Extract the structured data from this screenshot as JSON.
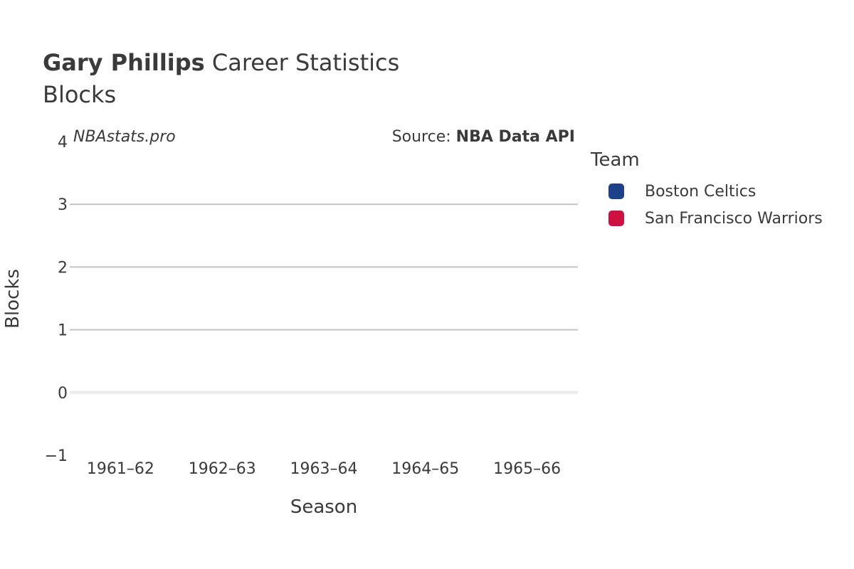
{
  "title": {
    "player": "Gary Phillips",
    "rest": "Career Statistics",
    "subtitle": "Blocks"
  },
  "watermark": "NBAstats.pro",
  "source": {
    "prefix": "Source: ",
    "name": "NBA Data API"
  },
  "legend": {
    "title": "Team",
    "items": [
      {
        "label": "Boston Celtics",
        "color": "#1d428a"
      },
      {
        "label": "San Francisco Warriors",
        "color": "#ce1141"
      }
    ]
  },
  "chart_data": {
    "type": "bar",
    "xlabel": "Season",
    "ylabel": "Blocks",
    "categories": [
      "1961–62",
      "1962–63",
      "1963–64",
      "1964–65",
      "1965–66"
    ],
    "ylim": [
      -1,
      4
    ],
    "yticks": [
      -1,
      0,
      1,
      2,
      3,
      4
    ],
    "ytick_labels": [
      "−1",
      "0",
      "1",
      "2",
      "3",
      "4"
    ],
    "grid": true,
    "legend_position": "right",
    "series": [
      {
        "name": "Boston Celtics",
        "values": [
          0,
          0,
          0,
          0,
          0
        ]
      },
      {
        "name": "San Francisco Warriors",
        "values": [
          0,
          0,
          0,
          0,
          0
        ]
      }
    ]
  }
}
